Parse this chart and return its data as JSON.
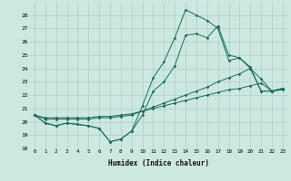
{
  "xlabel": "Humidex (Indice chaleur)",
  "bg_color": "#cce8e0",
  "grid_color": "#aacfc8",
  "line_color": "#1a6b5a",
  "xlim": [
    -0.5,
    23.5
  ],
  "ylim": [
    18,
    29
  ],
  "xticks": [
    0,
    1,
    2,
    3,
    4,
    5,
    6,
    7,
    8,
    9,
    10,
    11,
    12,
    13,
    14,
    15,
    16,
    17,
    18,
    19,
    20,
    21,
    22,
    23
  ],
  "yticks": [
    18,
    19,
    20,
    21,
    22,
    23,
    24,
    25,
    26,
    27,
    28
  ],
  "series": [
    [
      20.5,
      19.9,
      19.7,
      19.9,
      19.8,
      19.7,
      19.5,
      18.5,
      18.7,
      19.3,
      20.5,
      22.3,
      23.0,
      24.2,
      26.5,
      26.6,
      26.3,
      27.2,
      25.0,
      24.8,
      24.0,
      23.2,
      22.3,
      22.4
    ],
    [
      20.5,
      19.9,
      19.7,
      19.9,
      19.8,
      19.7,
      19.5,
      18.5,
      18.7,
      19.3,
      21.2,
      23.3,
      24.5,
      26.3,
      28.4,
      28.0,
      27.6,
      27.0,
      24.6,
      24.8,
      24.1,
      22.3,
      22.3,
      22.5
    ],
    [
      20.5,
      20.3,
      20.3,
      20.3,
      20.3,
      20.3,
      20.4,
      20.4,
      20.5,
      20.6,
      20.8,
      21.0,
      21.2,
      21.4,
      21.6,
      21.8,
      22.0,
      22.2,
      22.4,
      22.5,
      22.7,
      22.9,
      22.3,
      22.5
    ],
    [
      20.5,
      20.2,
      20.2,
      20.2,
      20.2,
      20.2,
      20.3,
      20.3,
      20.4,
      20.5,
      20.8,
      21.1,
      21.4,
      21.7,
      22.0,
      22.3,
      22.6,
      23.0,
      23.3,
      23.6,
      24.0,
      22.3,
      22.3,
      22.5
    ]
  ]
}
